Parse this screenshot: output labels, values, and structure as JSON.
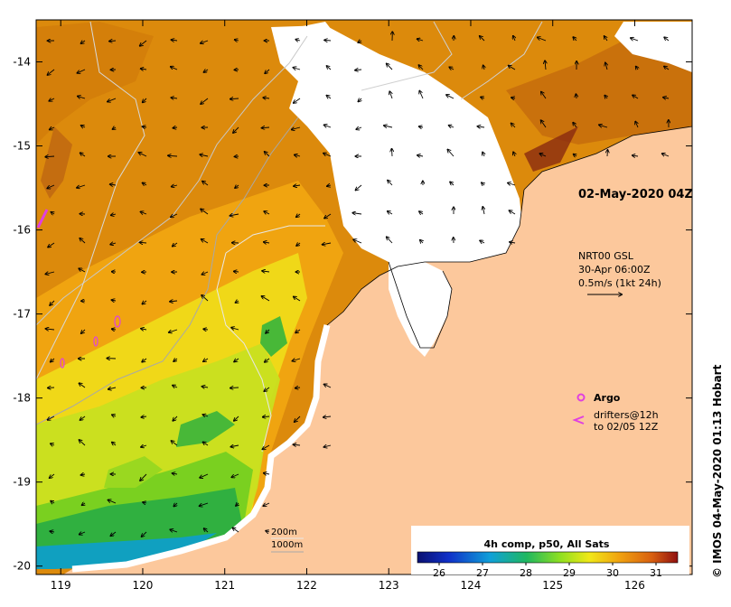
{
  "chart_data": {
    "type": "heatmap",
    "title": "02-May-2020 04Z",
    "x_ticks": [
      "119",
      "120",
      "121",
      "122",
      "123",
      "124",
      "125",
      "126"
    ],
    "y_ticks": [
      "-14",
      "-15",
      "-16",
      "-17",
      "-18",
      "-19",
      "-20"
    ],
    "xlim": [
      118.7,
      126.7
    ],
    "ylim": [
      -20.1,
      -13.5
    ],
    "current_label": {
      "line1": "NRT00 GSL",
      "line2": "30-Apr 06:00Z",
      "line3": "0.5m/s (1kt 24h)"
    },
    "legend": {
      "argo": "Argo",
      "drifters_line1": "drifters@12h",
      "drifters_line2": "to 02/05 12Z"
    },
    "contours": {
      "c200": "200m",
      "c1000": "1000m"
    },
    "colorbar": {
      "title": "4h comp, p50, All Sats",
      "ticks": [
        "26",
        "27",
        "28",
        "29",
        "30",
        "31"
      ],
      "range": [
        25.5,
        31.5
      ]
    },
    "credit": "© IMOS 04-May-2020 01:13 Hobart",
    "colors": {
      "land": "#fcc89c",
      "cloud": "#ffffff",
      "warm": "#dc8a0c",
      "argo": "#e040e0"
    }
  }
}
